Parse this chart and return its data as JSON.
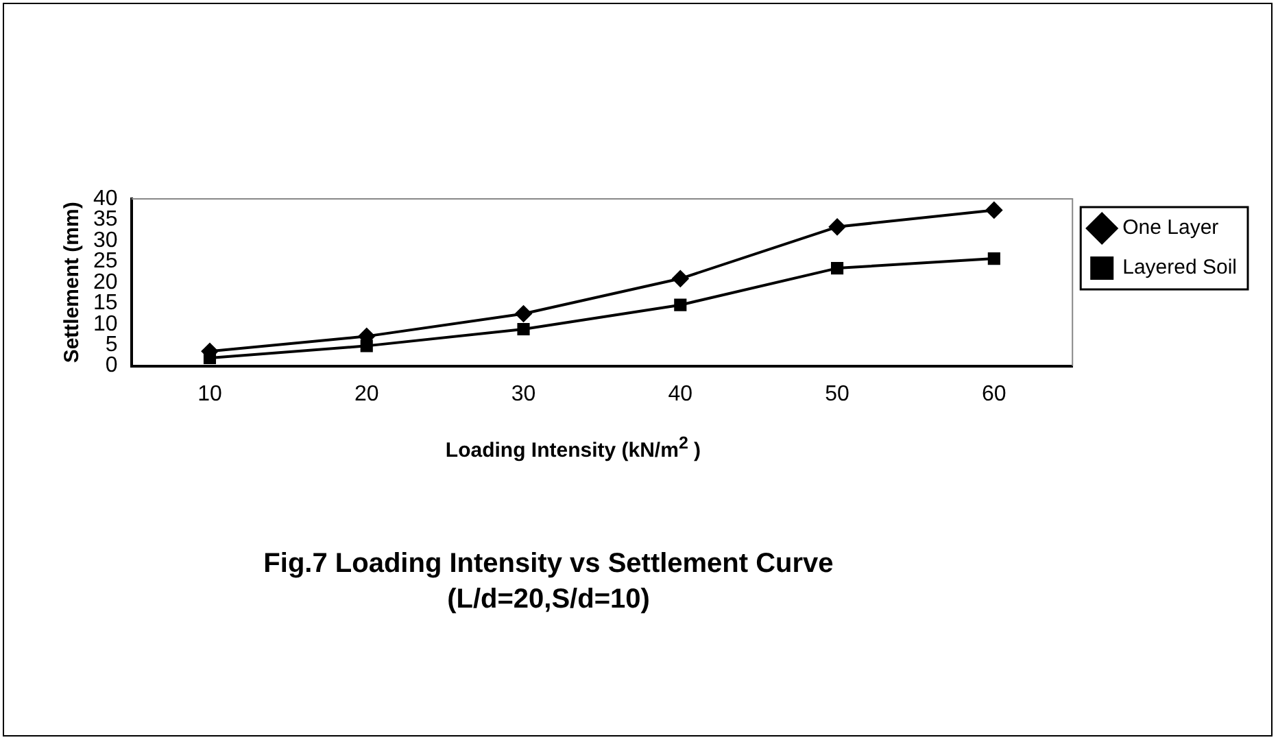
{
  "chart_data": {
    "type": "line",
    "title": "Fig.7 Loading Intensity vs Settlement Curve",
    "subtitle": "(L/d=20,S/d=10)",
    "xlabel": "Loading Intensity (kN/m$^{2}$ )",
    "ylabel": "Settlement (mm)",
    "categories": [
      "10",
      "20",
      "30",
      "40",
      "50",
      "60"
    ],
    "series": [
      {
        "name": "One Layer",
        "color": "#000000",
        "marker": "diamond",
        "values": [
          3.5,
          7.1,
          12.5,
          20.9,
          33.3,
          37.3
        ]
      },
      {
        "name": "Layered Soil",
        "color": "#000000",
        "marker": "square",
        "values": [
          1.9,
          4.8,
          8.8,
          14.6,
          23.4,
          25.7
        ]
      }
    ],
    "ylim": [
      0,
      40
    ],
    "yticks": [
      0,
      5,
      10,
      15,
      20,
      25,
      30,
      35,
      40
    ],
    "grid": false,
    "legend": "right",
    "line_style": "solid"
  }
}
